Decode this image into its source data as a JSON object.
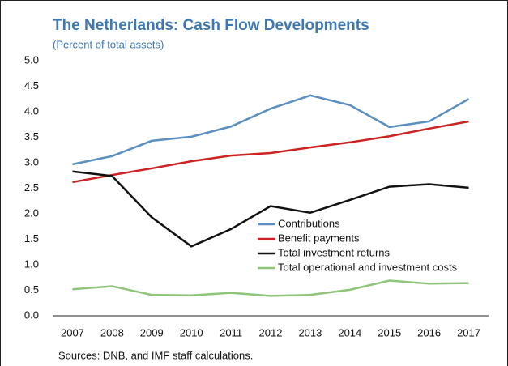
{
  "chart_data": {
    "type": "line",
    "title": "The Netherlands: Cash Flow Developments",
    "subtitle": "(Percent of total assets)",
    "source": "Sources: DNB, and IMF staff calculations.",
    "categories": [
      "2007",
      "2008",
      "2009",
      "2010",
      "2011",
      "2012",
      "2013",
      "2014",
      "2015",
      "2016",
      "2017"
    ],
    "series": [
      {
        "name": "Contributions",
        "color": "#5b8fc0",
        "values": [
          2.97,
          3.13,
          3.43,
          3.51,
          3.71,
          4.06,
          4.32,
          4.13,
          3.7,
          3.81,
          4.25
        ]
      },
      {
        "name": "Benefit payments",
        "color": "#cc2222",
        "values": [
          2.62,
          2.76,
          2.89,
          3.03,
          3.14,
          3.19,
          3.3,
          3.4,
          3.52,
          3.67,
          3.81
        ]
      },
      {
        "name": "Total investment returns",
        "color": "#111111",
        "values": [
          2.83,
          2.74,
          1.93,
          1.36,
          1.7,
          2.15,
          2.02,
          2.27,
          2.53,
          2.58,
          2.51
        ]
      },
      {
        "name": "Total operational and investment costs",
        "color": "#8fc47a",
        "values": [
          0.52,
          0.58,
          0.41,
          0.4,
          0.45,
          0.39,
          0.41,
          0.51,
          0.69,
          0.63,
          0.64
        ]
      }
    ],
    "ylim": [
      0,
      5
    ],
    "yticks": [
      {
        "value": 0,
        "label": "0.0"
      },
      0.5,
      {
        "value": 1,
        "label": "1.0"
      },
      1.5,
      {
        "value": 2,
        "label": "2.0"
      },
      2.5,
      {
        "value": 3,
        "label": "3.0"
      },
      3.5,
      {
        "value": 4,
        "label": "4.0"
      },
      4.5,
      {
        "value": 5,
        "label": "5.0"
      }
    ],
    "grid": false
  }
}
